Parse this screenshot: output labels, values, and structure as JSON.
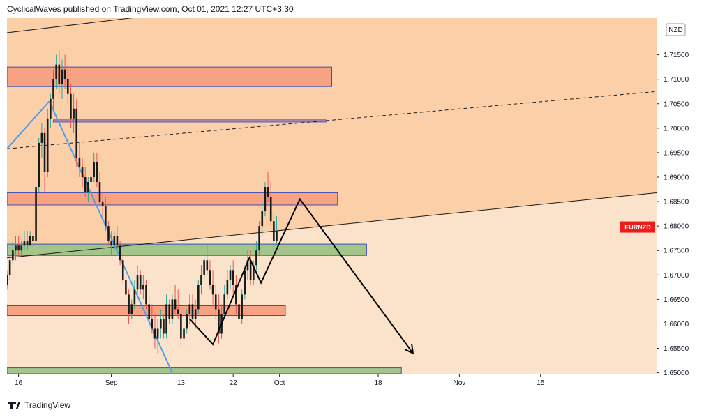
{
  "header": {
    "text": "CyclicalWaves published on TradingView.com, Oct 01, 2021 12:27 UTC+3:30"
  },
  "footer": {
    "brand": "TradingView",
    "logo_icon": "tradingview-logo-icon"
  },
  "chart_data": {
    "type": "candlestick",
    "symbol": "EURNZD",
    "currency": "NZD",
    "x_ticks": [
      {
        "day": 16,
        "label": "16"
      },
      {
        "day": 32,
        "label": "Sep"
      },
      {
        "day": 44,
        "label": "13"
      },
      {
        "day": 53,
        "label": "22"
      },
      {
        "day": 61,
        "label": "Oct"
      },
      {
        "day": 78,
        "label": "18"
      },
      {
        "day": 92,
        "label": "Nov"
      },
      {
        "day": 106,
        "label": "15"
      }
    ],
    "x_range": [
      14,
      126
    ],
    "y_ticks": [
      "1.71500",
      "1.71000",
      "1.70500",
      "1.70000",
      "1.69500",
      "1.69000",
      "1.68500",
      "1.68000",
      "1.67500",
      "1.67000",
      "1.66500",
      "1.66000",
      "1.65500",
      "1.65000"
    ],
    "ylim": [
      1.6498,
      1.7225
    ],
    "last_price": 1.6798,
    "colors": {
      "up": "#26a69a",
      "down": "#ef5350",
      "candle_body": "#1a1a1a",
      "background_upper": "#fbd0a8",
      "background_lower": "#fbe2cb",
      "red_zone": "#f7a283",
      "green_zone": "#a2c58a",
      "pink_zone": "#f4a6b0",
      "zone_border": "#3d4fb3",
      "price_label": "#ef1a1a",
      "blue_line": "#4e9fe8"
    },
    "candles": [
      [
        14,
        1.668,
        1.671,
        1.667,
        1.67
      ],
      [
        14.5,
        1.67,
        1.674,
        1.669,
        1.673
      ],
      [
        15,
        1.673,
        1.677,
        1.672,
        1.675
      ],
      [
        15.5,
        1.675,
        1.678,
        1.673,
        1.676
      ],
      [
        16,
        1.676,
        1.678,
        1.674,
        1.675
      ],
      [
        16.5,
        1.675,
        1.677,
        1.674,
        1.676
      ],
      [
        17,
        1.676,
        1.679,
        1.675,
        1.677
      ],
      [
        17.5,
        1.677,
        1.679,
        1.675,
        1.676
      ],
      [
        18,
        1.676,
        1.679,
        1.676,
        1.678
      ],
      [
        18.5,
        1.678,
        1.68,
        1.676,
        1.677
      ],
      [
        19,
        1.677,
        1.689,
        1.677,
        1.688
      ],
      [
        19.5,
        1.688,
        1.698,
        1.687,
        1.697
      ],
      [
        20,
        1.697,
        1.701,
        1.694,
        1.699
      ],
      [
        20.5,
        1.699,
        1.7,
        1.687,
        1.691
      ],
      [
        21,
        1.691,
        1.704,
        1.69,
        1.702
      ],
      [
        21.5,
        1.702,
        1.707,
        1.7,
        1.706
      ],
      [
        22,
        1.706,
        1.712,
        1.704,
        1.71
      ],
      [
        22.5,
        1.71,
        1.715,
        1.708,
        1.713
      ],
      [
        23,
        1.713,
        1.716,
        1.707,
        1.709
      ],
      [
        23.5,
        1.709,
        1.714,
        1.706,
        1.712
      ],
      [
        24,
        1.712,
        1.715,
        1.708,
        1.71
      ],
      [
        24.5,
        1.71,
        1.713,
        1.705,
        1.707
      ],
      [
        25,
        1.707,
        1.709,
        1.7,
        1.702
      ],
      [
        25.5,
        1.702,
        1.707,
        1.699,
        1.704
      ],
      [
        26,
        1.704,
        1.706,
        1.692,
        1.694
      ],
      [
        26.5,
        1.694,
        1.697,
        1.69,
        1.692
      ],
      [
        27,
        1.692,
        1.694,
        1.688,
        1.69
      ],
      [
        27.5,
        1.69,
        1.692,
        1.686,
        1.687
      ],
      [
        28,
        1.687,
        1.69,
        1.685,
        1.689
      ],
      [
        28.5,
        1.689,
        1.691,
        1.687,
        1.69
      ],
      [
        29,
        1.69,
        1.695,
        1.689,
        1.693
      ],
      [
        29.5,
        1.693,
        1.695,
        1.688,
        1.689
      ],
      [
        30,
        1.689,
        1.691,
        1.684,
        1.685
      ],
      [
        30.5,
        1.685,
        1.687,
        1.682,
        1.684
      ],
      [
        31,
        1.684,
        1.686,
        1.679,
        1.68
      ],
      [
        31.5,
        1.68,
        1.681,
        1.676,
        1.677
      ],
      [
        32,
        1.677,
        1.679,
        1.674,
        1.676
      ],
      [
        32.5,
        1.676,
        1.679,
        1.675,
        1.678
      ],
      [
        33,
        1.678,
        1.68,
        1.675,
        1.676
      ],
      [
        33.5,
        1.676,
        1.677,
        1.672,
        1.673
      ],
      [
        34,
        1.673,
        1.674,
        1.668,
        1.669
      ],
      [
        34.5,
        1.669,
        1.67,
        1.665,
        1.666
      ],
      [
        35,
        1.666,
        1.667,
        1.66,
        1.662
      ],
      [
        35.5,
        1.662,
        1.665,
        1.661,
        1.664
      ],
      [
        36,
        1.664,
        1.669,
        1.663,
        1.667
      ],
      [
        36.5,
        1.667,
        1.672,
        1.666,
        1.67
      ],
      [
        37,
        1.67,
        1.671,
        1.666,
        1.667
      ],
      [
        37.5,
        1.667,
        1.67,
        1.665,
        1.668
      ],
      [
        38,
        1.668,
        1.669,
        1.663,
        1.664
      ],
      [
        38.5,
        1.664,
        1.666,
        1.659,
        1.661
      ],
      [
        39,
        1.661,
        1.664,
        1.658,
        1.659
      ],
      [
        39.5,
        1.659,
        1.662,
        1.655,
        1.657
      ],
      [
        40,
        1.657,
        1.661,
        1.654,
        1.659
      ],
      [
        40.5,
        1.659,
        1.663,
        1.657,
        1.661
      ],
      [
        41,
        1.661,
        1.662,
        1.657,
        1.658
      ],
      [
        41.5,
        1.658,
        1.666,
        1.657,
        1.664
      ],
      [
        42,
        1.664,
        1.665,
        1.66,
        1.661
      ],
      [
        42.5,
        1.661,
        1.666,
        1.66,
        1.665
      ],
      [
        43,
        1.665,
        1.668,
        1.662,
        1.663
      ],
      [
        43.5,
        1.663,
        1.667,
        1.661,
        1.662
      ],
      [
        44,
        1.662,
        1.664,
        1.655,
        1.657
      ],
      [
        44.5,
        1.657,
        1.66,
        1.655,
        1.659
      ],
      [
        45,
        1.659,
        1.663,
        1.658,
        1.662
      ],
      [
        45.5,
        1.662,
        1.666,
        1.66,
        1.664
      ],
      [
        46,
        1.664,
        1.666,
        1.66,
        1.661
      ],
      [
        46.5,
        1.661,
        1.665,
        1.659,
        1.663
      ],
      [
        47,
        1.663,
        1.669,
        1.662,
        1.668
      ],
      [
        47.5,
        1.668,
        1.672,
        1.666,
        1.67
      ],
      [
        48,
        1.67,
        1.675,
        1.669,
        1.673
      ],
      [
        48.5,
        1.673,
        1.676,
        1.67,
        1.671
      ],
      [
        49,
        1.671,
        1.673,
        1.667,
        1.668
      ],
      [
        49.5,
        1.668,
        1.671,
        1.664,
        1.666
      ],
      [
        50,
        1.666,
        1.668,
        1.661,
        1.663
      ],
      [
        50.5,
        1.663,
        1.666,
        1.656,
        1.658
      ],
      [
        51,
        1.658,
        1.664,
        1.657,
        1.662
      ],
      [
        51.5,
        1.662,
        1.668,
        1.661,
        1.666
      ],
      [
        52,
        1.666,
        1.671,
        1.665,
        1.669
      ],
      [
        52.5,
        1.669,
        1.672,
        1.667,
        1.671
      ],
      [
        53,
        1.671,
        1.673,
        1.666,
        1.668
      ],
      [
        53.5,
        1.668,
        1.67,
        1.662,
        1.664
      ],
      [
        54,
        1.664,
        1.666,
        1.659,
        1.661
      ],
      [
        54.5,
        1.661,
        1.667,
        1.66,
        1.666
      ],
      [
        55,
        1.666,
        1.672,
        1.665,
        1.671
      ],
      [
        55.5,
        1.671,
        1.675,
        1.669,
        1.673
      ],
      [
        56,
        1.673,
        1.675,
        1.668,
        1.669
      ],
      [
        56.5,
        1.669,
        1.673,
        1.668,
        1.672
      ],
      [
        57,
        1.672,
        1.677,
        1.671,
        1.675
      ],
      [
        57.5,
        1.675,
        1.681,
        1.674,
        1.68
      ],
      [
        58,
        1.68,
        1.685,
        1.678,
        1.683
      ],
      [
        58.5,
        1.683,
        1.689,
        1.682,
        1.688
      ],
      [
        59,
        1.688,
        1.691,
        1.685,
        1.686
      ],
      [
        59.5,
        1.686,
        1.689,
        1.68,
        1.681
      ],
      [
        60,
        1.681,
        1.683,
        1.675,
        1.677
      ],
      [
        60.5,
        1.677,
        1.682,
        1.676,
        1.679
      ]
    ],
    "zones": [
      {
        "x0": 14,
        "x1": 70,
        "y0": 1.7085,
        "y1": 1.7125,
        "kind": "red"
      },
      {
        "x0": 22,
        "x1": 69,
        "y0": 1.7013,
        "y1": 1.7017,
        "kind": "pink"
      },
      {
        "x0": 14,
        "x1": 71,
        "y0": 1.6843,
        "y1": 1.6868,
        "kind": "red"
      },
      {
        "x0": 14,
        "x1": 76,
        "y0": 1.674,
        "y1": 1.6763,
        "kind": "green"
      },
      {
        "x0": 14,
        "x1": 62,
        "y0": 1.6617,
        "y1": 1.6637,
        "kind": "red"
      },
      {
        "x0": 14,
        "x1": 82,
        "y0": 1.6498,
        "y1": 1.651,
        "kind": "green"
      }
    ],
    "lines": [
      {
        "x": [
          14,
          38
        ],
        "y": [
          1.7195,
          1.7229
        ],
        "style": "solid",
        "color": "#1a1a1a"
      },
      {
        "x": [
          14,
          126
        ],
        "y": [
          1.6735,
          1.6868
        ],
        "style": "solid",
        "color": "#1a1a1a"
      },
      {
        "x": [
          14,
          126
        ],
        "y": [
          1.6958,
          1.7075
        ],
        "style": "dashed",
        "color": "#1a1a1a"
      },
      {
        "x": [
          14,
          21.3
        ],
        "y": [
          1.6958,
          1.7055
        ],
        "style": "solid",
        "color": "#4e9fe8"
      },
      {
        "x": [
          21.3,
          42.5
        ],
        "y": [
          1.7055,
          1.65
        ],
        "style": "solid",
        "color": "#4e9fe8"
      }
    ],
    "projection": {
      "x": [
        45.5,
        49.5,
        55.8,
        57.8,
        64.5,
        84
      ],
      "y": [
        1.661,
        1.6558,
        1.6735,
        1.6684,
        1.6855,
        1.654
      ],
      "color": "#000000",
      "arrow": true
    }
  }
}
